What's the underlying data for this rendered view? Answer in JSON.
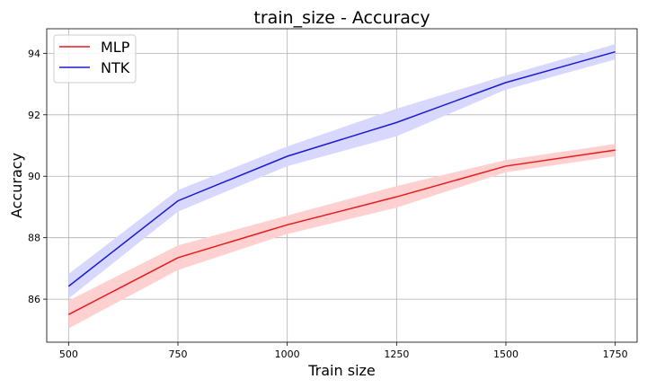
{
  "chart_data": {
    "type": "line",
    "title": "train_size - Accuracy",
    "xlabel": "Train size",
    "ylabel": "Accuracy",
    "x": [
      500,
      750,
      1000,
      1250,
      1500,
      1750
    ],
    "xticks": [
      500,
      750,
      1000,
      1250,
      1500,
      1750
    ],
    "yticks": [
      86,
      88,
      90,
      92,
      94
    ],
    "xlim": [
      450,
      1800
    ],
    "ylim": [
      84.6,
      94.8
    ],
    "grid": true,
    "legend_position": "top-left",
    "series": [
      {
        "name": "MLP",
        "color": "#e8191b",
        "band_color": "#ffd0d0",
        "values": [
          85.5,
          87.35,
          88.42,
          89.33,
          90.33,
          90.85
        ],
        "lower": [
          85.05,
          86.95,
          88.12,
          88.98,
          90.13,
          90.65
        ],
        "upper": [
          85.95,
          87.75,
          88.72,
          89.68,
          90.53,
          91.05
        ]
      },
      {
        "name": "NTK",
        "color": "#1a1ad0",
        "band_color": "#d8d8ff",
        "values": [
          86.42,
          89.2,
          90.65,
          91.75,
          93.05,
          94.05
        ],
        "lower": [
          86.02,
          88.85,
          90.33,
          91.3,
          92.82,
          93.8
        ],
        "upper": [
          86.82,
          89.55,
          90.97,
          92.2,
          93.28,
          94.3
        ]
      }
    ]
  }
}
